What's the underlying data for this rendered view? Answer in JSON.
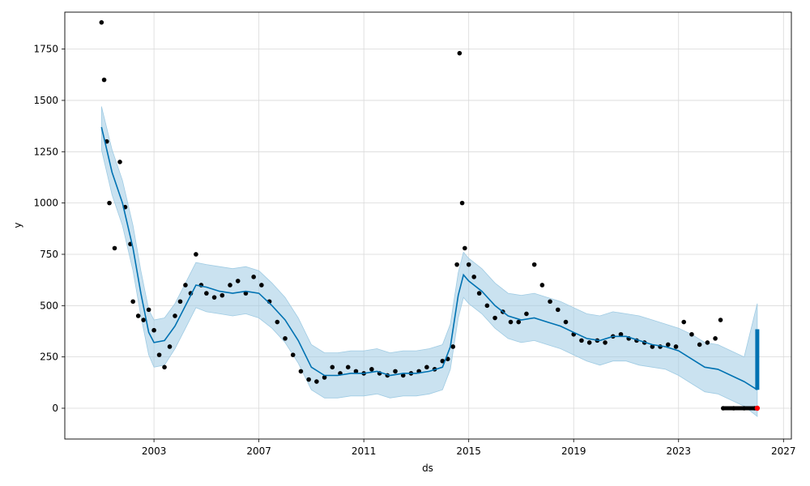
{
  "chart_data": {
    "type": "scatter",
    "xlabel": "ds",
    "ylabel": "y",
    "xlim": [
      1999.6,
      2027.3
    ],
    "ylim": [
      -150,
      1930
    ],
    "grid": true,
    "x_ticks": [
      2003,
      2007,
      2011,
      2015,
      2019,
      2023,
      2027
    ],
    "y_ticks": [
      0,
      250,
      500,
      750,
      1000,
      1250,
      1500,
      1750
    ],
    "colors": {
      "observed": "#000000",
      "forecast": "#0072B2",
      "interval": "#9fcbe3",
      "highlight": "#ff0000"
    },
    "series": [
      {
        "kind": "observed_points",
        "x": [
          2001.0,
          2001.1,
          2001.2,
          2001.3,
          2001.5,
          2001.7,
          2001.9,
          2002.1,
          2002.2,
          2002.4,
          2002.6,
          2002.8,
          2003.0,
          2003.2,
          2003.4,
          2003.6,
          2003.8,
          2004.0,
          2004.2,
          2004.4,
          2004.6,
          2004.8,
          2005.0,
          2005.3,
          2005.6,
          2005.9,
          2006.2,
          2006.5,
          2006.8,
          2007.1,
          2007.4,
          2007.7,
          2008.0,
          2008.3,
          2008.6,
          2008.9,
          2009.2,
          2009.5,
          2009.8,
          2010.1,
          2010.4,
          2010.7,
          2011.0,
          2011.3,
          2011.6,
          2011.9,
          2012.2,
          2012.5,
          2012.8,
          2013.1,
          2013.4,
          2013.7,
          2014.0,
          2014.2,
          2014.4,
          2014.55,
          2014.65,
          2014.75,
          2014.85,
          2015.0,
          2015.2,
          2015.4,
          2015.7,
          2016.0,
          2016.3,
          2016.6,
          2016.9,
          2017.2,
          2017.5,
          2017.8,
          2018.1,
          2018.4,
          2018.7,
          2019.0,
          2019.3,
          2019.6,
          2019.9,
          2020.2,
          2020.5,
          2020.8,
          2021.1,
          2021.4,
          2021.7,
          2022.0,
          2022.3,
          2022.6,
          2022.9,
          2023.2,
          2023.5,
          2023.8,
          2024.1,
          2024.4,
          2024.6
        ],
        "y": [
          1880,
          1600,
          1300,
          1000,
          780,
          1200,
          980,
          800,
          520,
          450,
          430,
          480,
          380,
          260,
          200,
          300,
          450,
          520,
          600,
          560,
          750,
          600,
          560,
          540,
          550,
          600,
          620,
          560,
          640,
          600,
          520,
          420,
          340,
          260,
          180,
          140,
          130,
          150,
          200,
          170,
          200,
          180,
          170,
          190,
          170,
          160,
          180,
          160,
          170,
          180,
          200,
          190,
          230,
          240,
          300,
          700,
          1730,
          1000,
          780,
          700,
          640,
          560,
          500,
          440,
          470,
          420,
          420,
          460,
          700,
          600,
          520,
          480,
          420,
          360,
          330,
          320,
          330,
          320,
          350,
          360,
          340,
          330,
          320,
          300,
          300,
          310,
          300,
          420,
          360,
          310,
          320,
          340,
          430
        ]
      },
      {
        "kind": "future_points",
        "x": [
          2024.7,
          2025.1,
          2025.5,
          2025.9,
          2026.0
        ],
        "y": [
          0,
          0,
          0,
          0,
          0
        ]
      },
      {
        "kind": "forecast_line",
        "x": [
          2001.0,
          2001.4,
          2001.8,
          2002.2,
          2002.5,
          2002.8,
          2003.0,
          2003.4,
          2003.8,
          2004.2,
          2004.6,
          2005.0,
          2005.5,
          2006.0,
          2006.5,
          2007.0,
          2007.5,
          2008.0,
          2008.5,
          2009.0,
          2009.5,
          2010.0,
          2010.5,
          2011.0,
          2011.5,
          2012.0,
          2012.5,
          2013.0,
          2013.5,
          2014.0,
          2014.3,
          2014.6,
          2014.8,
          2015.0,
          2015.5,
          2016.0,
          2016.5,
          2017.0,
          2017.5,
          2018.0,
          2018.5,
          2019.0,
          2019.5,
          2020.0,
          2020.5,
          2021.0,
          2021.5,
          2022.0,
          2022.5,
          2023.0,
          2023.5,
          2024.0,
          2024.5,
          2025.0,
          2025.5,
          2026.0
        ],
        "y": [
          1370,
          1150,
          1000,
          780,
          560,
          370,
          320,
          330,
          400,
          500,
          600,
          590,
          570,
          560,
          570,
          560,
          500,
          430,
          330,
          200,
          160,
          160,
          170,
          170,
          180,
          160,
          170,
          170,
          180,
          200,
          300,
          550,
          650,
          620,
          570,
          500,
          450,
          430,
          440,
          420,
          400,
          370,
          340,
          330,
          350,
          350,
          330,
          310,
          300,
          280,
          240,
          200,
          190,
          160,
          130,
          90
        ]
      },
      {
        "kind": "uncertainty_interval",
        "x": [
          2001.0,
          2001.4,
          2001.8,
          2002.2,
          2002.5,
          2002.8,
          2003.0,
          2003.4,
          2003.8,
          2004.2,
          2004.6,
          2005.0,
          2005.5,
          2006.0,
          2006.5,
          2007.0,
          2007.5,
          2008.0,
          2008.5,
          2009.0,
          2009.5,
          2010.0,
          2010.5,
          2011.0,
          2011.5,
          2012.0,
          2012.5,
          2013.0,
          2013.5,
          2014.0,
          2014.3,
          2014.6,
          2014.8,
          2015.0,
          2015.5,
          2016.0,
          2016.5,
          2017.0,
          2017.5,
          2018.0,
          2018.5,
          2019.0,
          2019.5,
          2020.0,
          2020.5,
          2021.0,
          2021.5,
          2022.0,
          2022.5,
          2023.0,
          2023.5,
          2024.0,
          2024.5,
          2025.0,
          2025.5,
          2026.0
        ],
        "lower": [
          1260,
          1040,
          890,
          670,
          450,
          260,
          200,
          210,
          290,
          390,
          490,
          470,
          460,
          450,
          460,
          440,
          390,
          320,
          220,
          90,
          50,
          50,
          60,
          60,
          70,
          50,
          60,
          60,
          70,
          90,
          190,
          440,
          540,
          510,
          460,
          390,
          340,
          320,
          330,
          310,
          290,
          260,
          230,
          210,
          230,
          230,
          210,
          200,
          190,
          160,
          120,
          80,
          70,
          40,
          10,
          -40
        ],
        "upper": [
          1470,
          1260,
          1110,
          890,
          670,
          480,
          430,
          440,
          510,
          610,
          710,
          700,
          690,
          680,
          690,
          670,
          610,
          540,
          440,
          310,
          270,
          270,
          280,
          280,
          290,
          270,
          280,
          280,
          290,
          310,
          410,
          660,
          760,
          730,
          680,
          610,
          560,
          550,
          560,
          540,
          520,
          490,
          460,
          450,
          470,
          460,
          450,
          430,
          410,
          390,
          360,
          320,
          310,
          280,
          250,
          510
        ]
      }
    ]
  }
}
